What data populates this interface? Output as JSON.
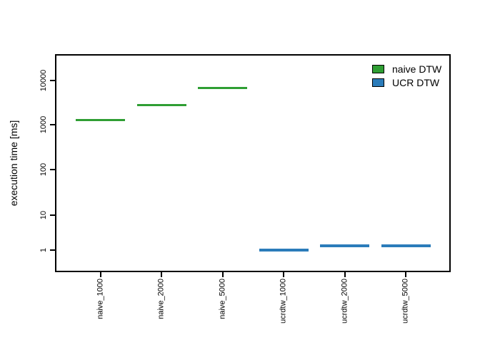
{
  "chart_data": {
    "type": "boxplot",
    "ylabel": "execution time [ms]",
    "xlabel": "",
    "y_scale": "log",
    "y_ticks": [
      1,
      10,
      100,
      1000,
      10000
    ],
    "y_tick_labels": [
      "1",
      "10",
      "100",
      "1000",
      "10000"
    ],
    "ylim": [
      0.7,
      30000
    ],
    "grid": false,
    "legend_position": "top-right-inside",
    "categories": [
      "naive_1000",
      "naive_2000",
      "naive_5000",
      "ucrdtw_1000",
      "ucrdtw_2000",
      "ucrdtw_5000"
    ],
    "series": [
      {
        "name": "naive DTW",
        "color": "#2f9e33",
        "values": [
          1250,
          2800,
          6800,
          null,
          null,
          null
        ]
      },
      {
        "name": "UCR DTW",
        "color": "#2b7cba",
        "values": [
          null,
          null,
          null,
          1.0,
          1.3,
          1.3
        ]
      }
    ],
    "units": "ms"
  },
  "colors": {
    "axis": "#000000",
    "background": "#ffffff",
    "naive_dtw": "#2f9e33",
    "ucr_dtw": "#2b7cba"
  }
}
